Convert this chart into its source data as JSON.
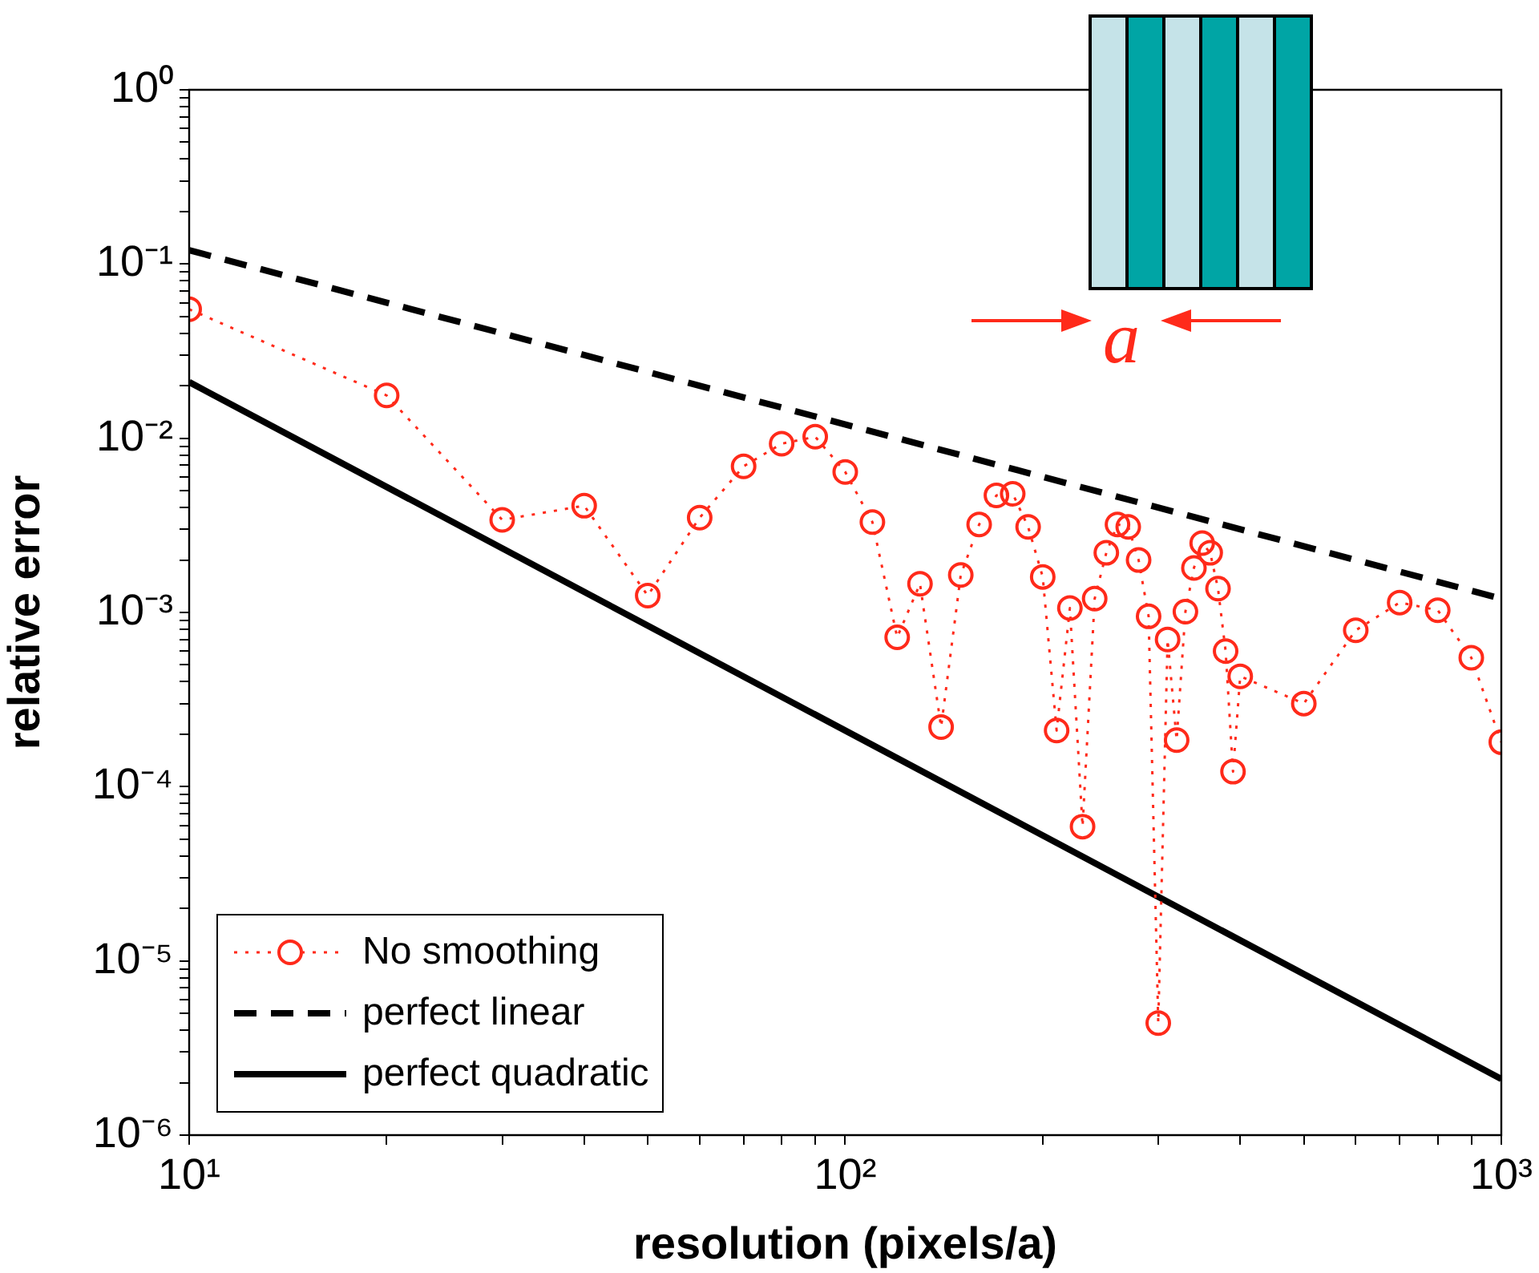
{
  "chart_data": {
    "type": "line",
    "xlabel": "resolution (pixels/a)",
    "ylabel": "relative error",
    "log": "xy",
    "legend": "bottom left",
    "annotations": [
      "a"
    ],
    "xlim": [
      10,
      1000
    ],
    "ylim": [
      1e-06,
      1
    ],
    "xticks": [
      {
        "value": 10,
        "label": "10¹"
      },
      {
        "value": 20,
        "label": null
      },
      {
        "value": 30,
        "label": null
      },
      {
        "value": 40,
        "label": null
      },
      {
        "value": 50,
        "label": null
      },
      {
        "value": 60,
        "label": null
      },
      {
        "value": 70,
        "label": null
      },
      {
        "value": 80,
        "label": null
      },
      {
        "value": 90,
        "label": null
      },
      {
        "value": 100,
        "label": "10²"
      },
      {
        "value": 200,
        "label": null
      },
      {
        "value": 300,
        "label": null
      },
      {
        "value": 400,
        "label": null
      },
      {
        "value": 500,
        "label": null
      },
      {
        "value": 600,
        "label": null
      },
      {
        "value": 700,
        "label": null
      },
      {
        "value": 800,
        "label": null
      },
      {
        "value": 900,
        "label": null
      },
      {
        "value": 1000,
        "label": "10³"
      }
    ],
    "yticks": [
      {
        "value": 1e-06,
        "label": "10⁻⁶"
      },
      {
        "value": 2e-06,
        "label": null
      },
      {
        "value": 3e-06,
        "label": null
      },
      {
        "value": 4e-06,
        "label": null
      },
      {
        "value": 5e-06,
        "label": null
      },
      {
        "value": 6e-06,
        "label": null
      },
      {
        "value": 7e-06,
        "label": null
      },
      {
        "value": 8e-06,
        "label": null
      },
      {
        "value": 9e-06,
        "label": null
      },
      {
        "value": 1e-05,
        "label": "10⁻⁵"
      },
      {
        "value": 2e-05,
        "label": null
      },
      {
        "value": 3e-05,
        "label": null
      },
      {
        "value": 4e-05,
        "label": null
      },
      {
        "value": 5e-05,
        "label": null
      },
      {
        "value": 6e-05,
        "label": null
      },
      {
        "value": 7e-05,
        "label": null
      },
      {
        "value": 8e-05,
        "label": null
      },
      {
        "value": 9e-05,
        "label": null
      },
      {
        "value": 0.0001,
        "label": "10⁻⁴"
      },
      {
        "value": 0.0002,
        "label": null
      },
      {
        "value": 0.0003,
        "label": null
      },
      {
        "value": 0.0004,
        "label": null
      },
      {
        "value": 0.0005,
        "label": null
      },
      {
        "value": 0.0006,
        "label": null
      },
      {
        "value": 0.0007,
        "label": null
      },
      {
        "value": 0.0008,
        "label": null
      },
      {
        "value": 0.0009,
        "label": null
      },
      {
        "value": 0.001,
        "label": "10⁻³"
      },
      {
        "value": 0.002,
        "label": null
      },
      {
        "value": 0.003,
        "label": null
      },
      {
        "value": 0.004,
        "label": null
      },
      {
        "value": 0.005,
        "label": null
      },
      {
        "value": 0.006,
        "label": null
      },
      {
        "value": 0.007,
        "label": null
      },
      {
        "value": 0.008,
        "label": null
      },
      {
        "value": 0.009,
        "label": null
      },
      {
        "value": 0.01,
        "label": "10⁻²"
      },
      {
        "value": 0.02,
        "label": null
      },
      {
        "value": 0.03,
        "label": null
      },
      {
        "value": 0.04,
        "label": null
      },
      {
        "value": 0.05,
        "label": null
      },
      {
        "value": 0.06,
        "label": null
      },
      {
        "value": 0.07,
        "label": null
      },
      {
        "value": 0.08,
        "label": null
      },
      {
        "value": 0.09,
        "label": null
      },
      {
        "value": 0.1,
        "label": "10⁻¹"
      },
      {
        "value": 0.2,
        "label": null
      },
      {
        "value": 0.3,
        "label": null
      },
      {
        "value": 0.4,
        "label": null
      },
      {
        "value": 0.5,
        "label": null
      },
      {
        "value": 0.6,
        "label": null
      },
      {
        "value": 0.7,
        "label": null
      },
      {
        "value": 0.8,
        "label": null
      },
      {
        "value": 0.9,
        "label": null
      },
      {
        "value": 1,
        "label": "10⁰"
      }
    ],
    "series": [
      {
        "name": "No smoothing",
        "type": "line",
        "color": "#ff2a1a",
        "marker": "circle",
        "line_style": "dotted",
        "x": [
          10,
          20,
          30,
          40,
          50,
          60,
          70,
          80,
          90,
          100,
          110,
          120,
          130,
          140,
          150,
          160,
          170,
          180,
          190,
          200,
          210,
          220,
          230,
          240,
          250,
          260,
          270,
          280,
          290,
          300,
          310,
          320,
          330,
          340,
          350,
          360,
          370,
          380,
          390,
          400,
          500,
          600,
          700,
          800,
          900,
          1000
        ],
        "values": [
          0.055,
          0.0176,
          0.0034,
          0.0041,
          0.00125,
          0.0035,
          0.0069,
          0.0093,
          0.0102,
          0.0064,
          0.0033,
          0.00072,
          0.00146,
          0.00022,
          0.00164,
          0.0032,
          0.0047,
          0.0048,
          0.0031,
          0.0016,
          0.00021,
          0.00106,
          5.9e-05,
          0.0012,
          0.0022,
          0.0032,
          0.0031,
          0.002,
          0.00095,
          4.4e-06,
          0.0007,
          0.000185,
          0.00101,
          0.0018,
          0.0025,
          0.0022,
          0.00137,
          0.0006,
          0.000122,
          0.00043,
          0.0003,
          0.00079,
          0.00114,
          0.00103,
          0.00055,
          0.00018
        ]
      },
      {
        "name": "perfect linear",
        "type": "line",
        "color": "#000000",
        "marker": "none",
        "line_style": "dashed",
        "x": [
          10,
          1000
        ],
        "values": [
          0.12,
          0.0012
        ]
      },
      {
        "name": "perfect quadratic",
        "type": "line",
        "color": "#000000",
        "marker": "none",
        "line_style": "solid",
        "x": [
          10,
          1000
        ],
        "values": [
          0.021,
          2.1e-06
        ]
      }
    ]
  }
}
